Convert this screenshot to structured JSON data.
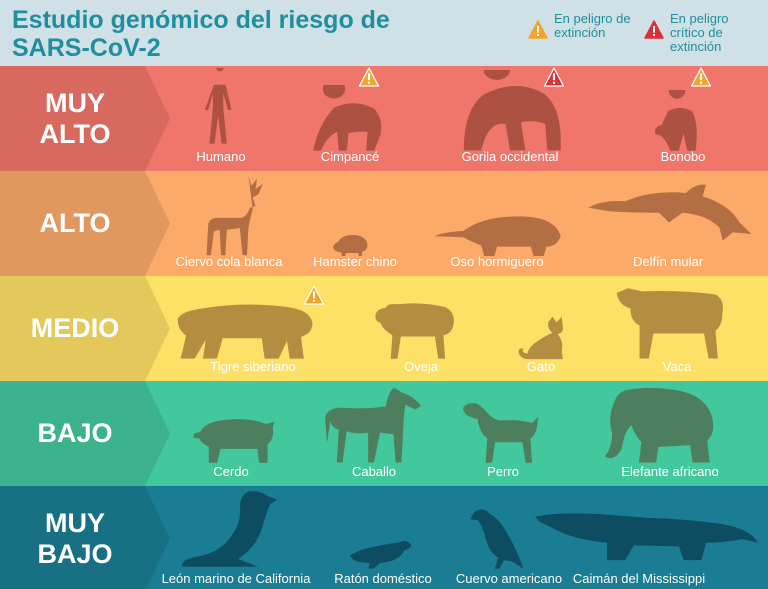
{
  "title": "Estudio genómico del riesgo de SARS-CoV-2",
  "legend": [
    {
      "label": "En peligro de extinción",
      "icon": "warning-triangle-orange",
      "color": "#f3a52a"
    },
    {
      "label": "En peligro crítico de extinción",
      "icon": "warning-triangle-red",
      "color": "#d9303a"
    }
  ],
  "colors": {
    "muy_alto": "#f0756a",
    "alto": "#fbaa6a",
    "medio": "#fde066",
    "bajo": "#43c79d",
    "muy_bajo": "#1a7d94"
  },
  "levels": [
    {
      "id": "muy_alto",
      "label": "MUY ALTO",
      "animals": [
        {
          "name": "Humano",
          "icon": "human-icon",
          "status": ""
        },
        {
          "name": "Cimpancé",
          "icon": "chimpanzee-icon",
          "status": "En peligro de extinción"
        },
        {
          "name": "Gorila occidental",
          "icon": "gorilla-icon",
          "status": "En peligro crítico de extinción"
        },
        {
          "name": "Bonobo",
          "icon": "bonobo-icon",
          "status": "En peligro de extinción"
        }
      ]
    },
    {
      "id": "alto",
      "label": "ALTO",
      "animals": [
        {
          "name": "Ciervo cola blanca",
          "icon": "deer-icon",
          "status": ""
        },
        {
          "name": "Hamster chino",
          "icon": "hamster-icon",
          "status": ""
        },
        {
          "name": "Oso hormiguero",
          "icon": "anteater-icon",
          "status": ""
        },
        {
          "name": "Delfín mular",
          "icon": "dolphin-icon",
          "status": ""
        }
      ]
    },
    {
      "id": "medio",
      "label": "MEDIO",
      "animals": [
        {
          "name": "Tigre siberiano",
          "icon": "tiger-icon",
          "status": "En peligro de extinción"
        },
        {
          "name": "Oveja",
          "icon": "sheep-icon",
          "status": ""
        },
        {
          "name": "Gato",
          "icon": "cat-icon",
          "status": ""
        },
        {
          "name": "Vaca",
          "icon": "cow-icon",
          "status": ""
        }
      ]
    },
    {
      "id": "bajo",
      "label": "BAJO",
      "animals": [
        {
          "name": "Cerdo",
          "icon": "pig-icon",
          "status": ""
        },
        {
          "name": "Caballo",
          "icon": "horse-icon",
          "status": ""
        },
        {
          "name": "Perro",
          "icon": "dog-icon",
          "status": ""
        },
        {
          "name": "Elefante africano",
          "icon": "elephant-icon",
          "status": ""
        }
      ]
    },
    {
      "id": "muy_bajo",
      "label": "MUY BAJO",
      "animals": [
        {
          "name": "León marino de California",
          "icon": "sea-lion-icon",
          "status": ""
        },
        {
          "name": "Ratón doméstico",
          "icon": "mouse-icon",
          "status": ""
        },
        {
          "name": "Cuervo americano",
          "icon": "crow-icon",
          "status": ""
        },
        {
          "name": "Caimán del Mississippi",
          "icon": "alligator-icon",
          "status": ""
        }
      ]
    }
  ]
}
